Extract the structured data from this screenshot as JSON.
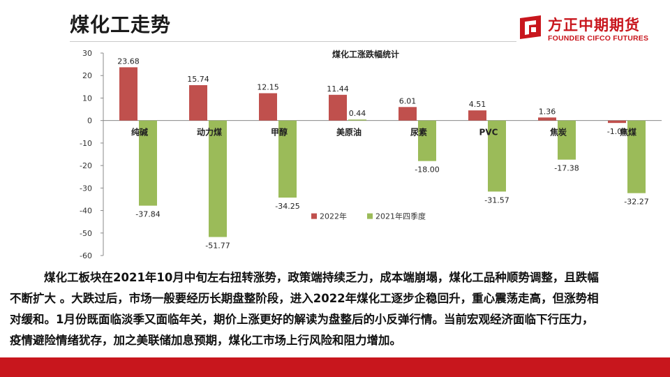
{
  "header": {
    "title": "煤化工走势",
    "logo_cn": "方正中期期货",
    "logo_en": "FOUNDER CIFCO FUTURES"
  },
  "colors": {
    "brand_red": "#c8161d",
    "series_2022": "#c0504d",
    "series_2021q4": "#9bbb59"
  },
  "chart_data": {
    "type": "bar",
    "title": "煤化工涨跌幅统计",
    "categories": [
      "纯碱",
      "动力煤",
      "甲醇",
      "美原油",
      "尿素",
      "PVC",
      "焦炭",
      "焦煤"
    ],
    "series": [
      {
        "name": "2022年",
        "values": [
          23.68,
          15.74,
          12.15,
          11.44,
          6.01,
          4.51,
          1.36,
          -1.08
        ]
      },
      {
        "name": "2021年四季度",
        "values": [
          -37.84,
          -51.77,
          -34.25,
          0.44,
          -18.0,
          -31.57,
          -17.38,
          -32.27
        ]
      }
    ],
    "ylim": [
      -60,
      30
    ],
    "yticks": [
      30,
      20,
      10,
      0,
      -10,
      -20,
      -30,
      -40,
      -50,
      -60
    ],
    "xlabel": "",
    "ylabel": "",
    "legend_position": "bottom-right"
  },
  "paragraph": {
    "lines": [
      "煤化工板块在2021年10月中旬左右扭转涨势，政策端持续乏力，成本端崩塌，煤化工品种顺势调整，且跌幅",
      "不断扩大 。大跌过后，市场一般要经历长期盘整阶段，进入2022年煤化工逐步企稳回升，重心震荡走高，但涨势相",
      "对缓和。1月份既面临淡季又面临年关，期价上涨更好的解读为盘整后的小反弹行情。当前宏观经济面临下行压力，",
      "疫情避险情绪犹存，加之美联储加息预期，煤化工市场上行风险和阻力增加。"
    ]
  }
}
